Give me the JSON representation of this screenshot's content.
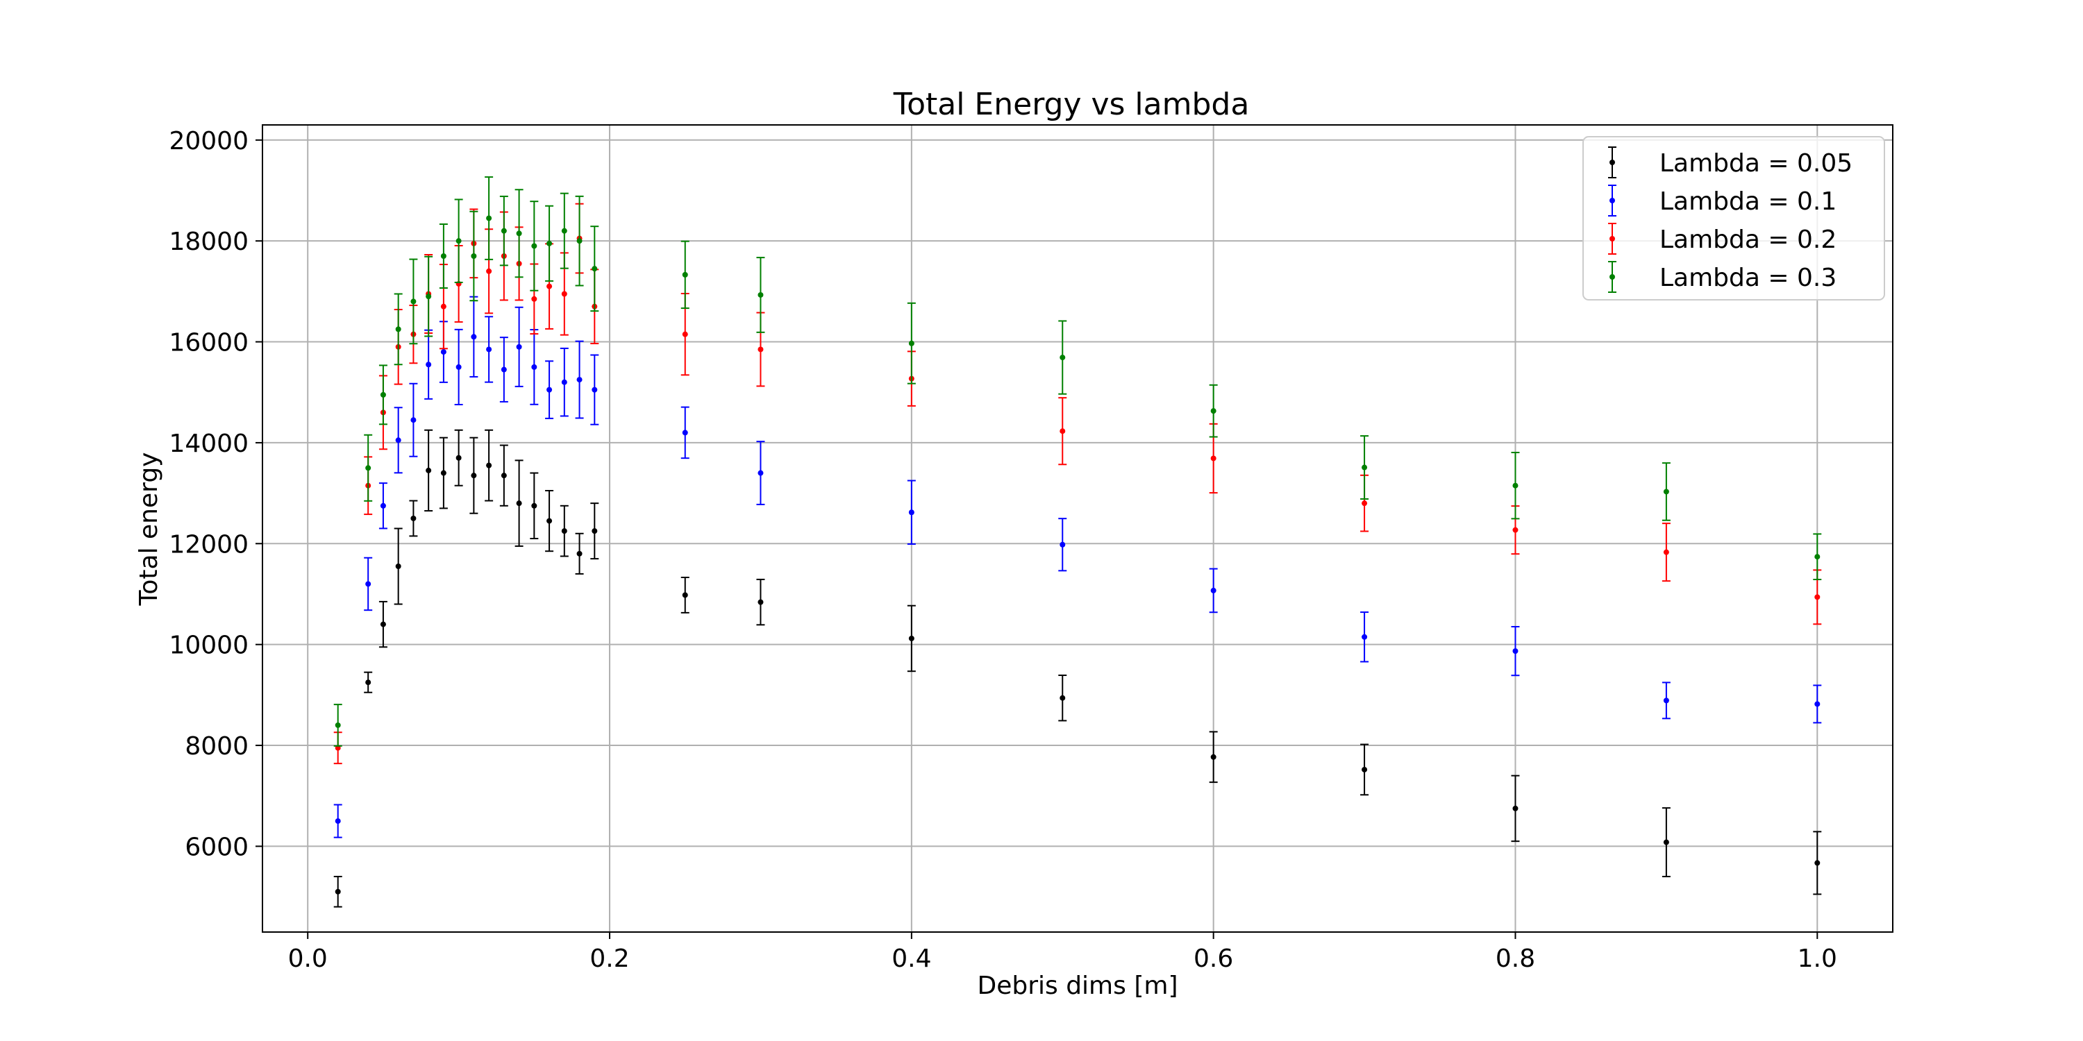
{
  "chart_data": {
    "type": "scatter",
    "title": "Total Energy vs lambda",
    "xlabel": "Debris dims [m]",
    "ylabel": "Total energy",
    "xlim": [
      -0.03,
      1.05
    ],
    "ylim": [
      4300,
      20300
    ],
    "xticks": [
      0.0,
      0.2,
      0.4,
      0.6,
      0.8,
      1.0
    ],
    "xtick_labels": [
      "0.0",
      "0.2",
      "0.4",
      "0.6",
      "0.8",
      "1.0"
    ],
    "yticks": [
      6000,
      8000,
      10000,
      12000,
      14000,
      16000,
      18000,
      20000
    ],
    "ytick_labels": [
      "6000",
      "8000",
      "10000",
      "12000",
      "14000",
      "16000",
      "18000",
      "20000"
    ],
    "grid": true,
    "legend_position": "top-right",
    "x": [
      0.02,
      0.04,
      0.05,
      0.06,
      0.07,
      0.08,
      0.09,
      0.1,
      0.11,
      0.12,
      0.13,
      0.14,
      0.15,
      0.16,
      0.17,
      0.18,
      0.19,
      0.25,
      0.3,
      0.4,
      0.5,
      0.6,
      0.7,
      0.8,
      0.9,
      1.0
    ],
    "series": [
      {
        "name": "Lambda = 0.05",
        "color": "#000000",
        "values": [
          5100,
          9250,
          10400,
          11550,
          12500,
          13450,
          13400,
          13700,
          13350,
          13550,
          13350,
          12800,
          12750,
          12450,
          12250,
          11800,
          12250,
          10980,
          10840,
          10120,
          8940,
          7770,
          7520,
          6750,
          6080,
          5670
        ],
        "errors": [
          300,
          200,
          450,
          750,
          350,
          800,
          700,
          550,
          750,
          700,
          600,
          850,
          650,
          600,
          500,
          400,
          550,
          350,
          450,
          650,
          450,
          500,
          500,
          650,
          680,
          620
        ]
      },
      {
        "name": "Lambda = 0.1",
        "color": "#0000ff",
        "values": [
          6500,
          11200,
          12750,
          14050,
          14450,
          15550,
          15800,
          15500,
          16100,
          15850,
          15450,
          15900,
          15500,
          15050,
          15200,
          15250,
          15050,
          14200,
          13400,
          12620,
          11980,
          11070,
          10150,
          9870,
          8890,
          8820
        ]
      },
      {
        "name": "Lambda = 0.2",
        "color": "#ff0000",
        "values": [
          7950,
          13150,
          14600,
          15900,
          16150,
          16950,
          16700,
          17150,
          17950,
          17400,
          17700,
          17550,
          16850,
          17100,
          16950,
          18050,
          16700,
          16150,
          15850,
          15270,
          14230,
          13690,
          12800,
          12270,
          11830,
          10940
        ]
      },
      {
        "name": "Lambda = 0.3",
        "color": "#008000",
        "values": [
          8400,
          13500,
          14950,
          16250,
          16800,
          16900,
          17700,
          18000,
          17700,
          18450,
          18200,
          18150,
          17900,
          17950,
          18200,
          18000,
          17450,
          17330,
          16930,
          15970,
          15690,
          14630,
          13510,
          13150,
          13030,
          11740
        ]
      }
    ]
  }
}
